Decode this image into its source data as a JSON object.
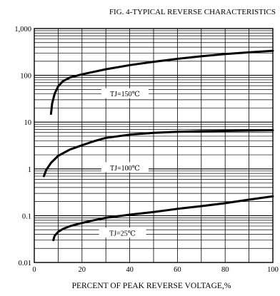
{
  "chart_data": {
    "type": "line",
    "title": "FIG. 4-TYPICAL REVERSE CHARACTERISTICS",
    "xlabel": "PERCENT OF PEAK REVERSE VOLTAGE,%",
    "ylabel": "",
    "xlim": [
      0,
      100
    ],
    "ylim": [
      0.01,
      1000
    ],
    "yscale": "log",
    "grid": true,
    "x_ticks": [
      {
        "value": 0,
        "label": "0"
      },
      {
        "value": 20,
        "label": "20"
      },
      {
        "value": 40,
        "label": "40"
      },
      {
        "value": 60,
        "label": "60"
      },
      {
        "value": 80,
        "label": "80"
      },
      {
        "value": 100,
        "label": "100"
      }
    ],
    "y_ticks": [
      {
        "value": 0.01,
        "label": "0.01"
      },
      {
        "value": 0.1,
        "label": "0.1"
      },
      {
        "value": 1,
        "label": "1"
      },
      {
        "value": 10,
        "label": "10"
      },
      {
        "value": 100,
        "label": "100"
      },
      {
        "value": 1000,
        "label": "1,000"
      }
    ],
    "series": [
      {
        "name": "TJ=150℃",
        "x": [
          7,
          7.5,
          8.5,
          10,
          12,
          15,
          20,
          30,
          40,
          50,
          60,
          70,
          80,
          90,
          100
        ],
        "y": [
          15,
          25,
          40,
          58,
          75,
          90,
          105,
          135,
          165,
          195,
          225,
          255,
          285,
          310,
          335
        ]
      },
      {
        "name": "TJ=100℃",
        "x": [
          4,
          5,
          7,
          10,
          15,
          20,
          25,
          30,
          40,
          50,
          60,
          70,
          80,
          90,
          100
        ],
        "y": [
          0.7,
          0.95,
          1.35,
          1.9,
          2.6,
          3.2,
          3.9,
          4.6,
          5.4,
          5.9,
          6.2,
          6.4,
          6.5,
          6.6,
          6.7
        ]
      },
      {
        "name": "TJ=25℃",
        "x": [
          8,
          8.5,
          10,
          12,
          15,
          20,
          25,
          30,
          40,
          50,
          60,
          70,
          80,
          90,
          100
        ],
        "y": [
          0.03,
          0.037,
          0.045,
          0.052,
          0.06,
          0.07,
          0.08,
          0.09,
          0.105,
          0.12,
          0.14,
          0.16,
          0.185,
          0.22,
          0.26
        ]
      }
    ]
  }
}
